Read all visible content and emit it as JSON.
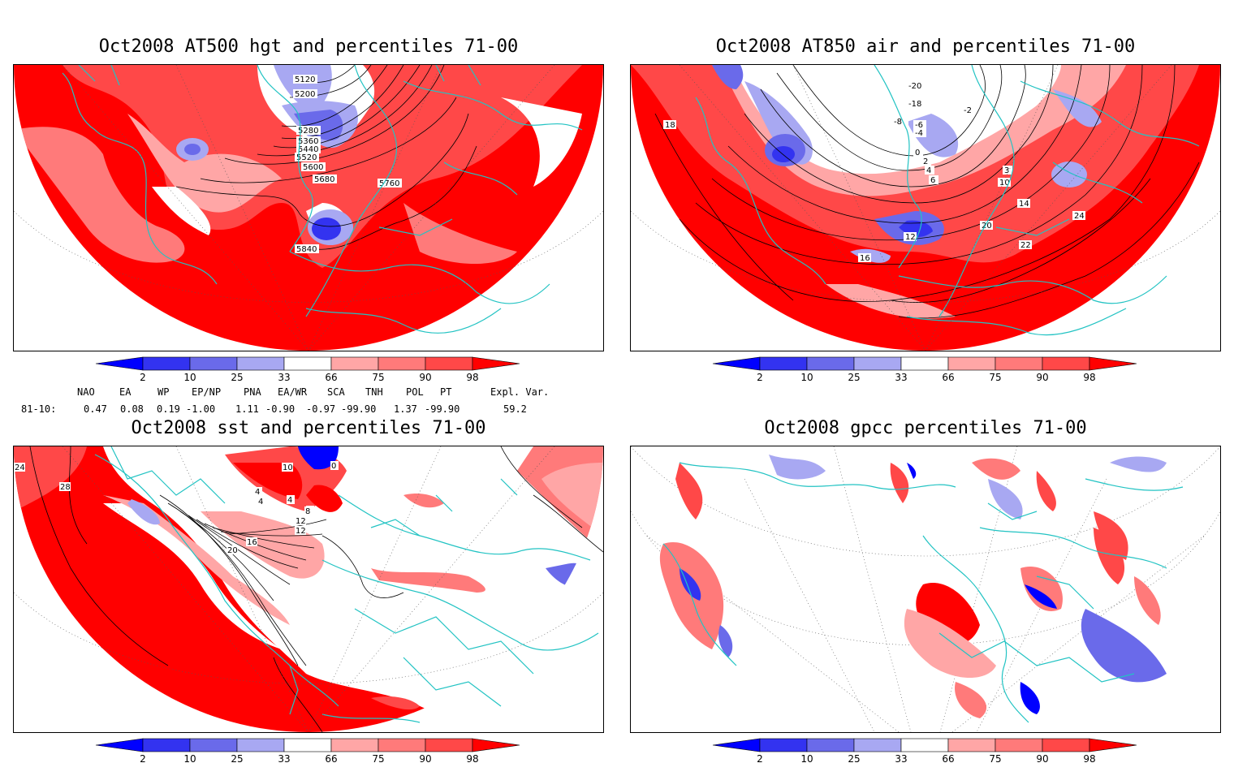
{
  "panels": [
    {
      "id": "hgt500",
      "title": "Oct2008 AT500 hgt and percentiles 71-00",
      "contour_labels": [
        "5120",
        "5200",
        "5280",
        "5360",
        "5440",
        "5520",
        "5600",
        "5680",
        "5760",
        "5840"
      ]
    },
    {
      "id": "air850",
      "title": "Oct2008 AT850 air and percentiles 71-00",
      "contour_labels": [
        "-20",
        "-18",
        "-8",
        "-6",
        "-4",
        "-2",
        "0",
        "2",
        "4",
        "6",
        "3",
        "10",
        "12",
        "14",
        "16",
        "18",
        "20",
        "22",
        "24"
      ]
    },
    {
      "id": "sst",
      "title": "Oct2008 sst and percentiles 71-00",
      "contour_labels": [
        "24",
        "28",
        "0",
        "4",
        "8",
        "12",
        "16",
        "20",
        "10",
        "4",
        "4",
        "8",
        "12"
      ]
    },
    {
      "id": "gpcc",
      "title": "Oct2008 gpcc percentiles 71-00",
      "contour_labels": []
    }
  ],
  "colorbar": {
    "labels": [
      "2",
      "10",
      "25",
      "33",
      "66",
      "75",
      "90",
      "98"
    ],
    "colors": {
      "b1": "#0000ff",
      "b2": "#3333f0",
      "b3": "#6a6aea",
      "b4": "#a8a8f2",
      "r1": "#ffa6a6",
      "r2": "#ff7a7a",
      "r3": "#ff4848",
      "r4": "#ff0000"
    }
  },
  "indices": {
    "headers": [
      "NAO",
      "EA",
      "WP",
      "EP/NP",
      "PNA",
      "EA/WR",
      "SCA",
      "TNH",
      "POL",
      "PT",
      "Expl. Var."
    ],
    "row_label": "81-10:",
    "values": [
      "0.47",
      "0.08",
      "0.19",
      "-1.00",
      "1.11",
      "-0.90",
      "-0.97",
      "-99.90",
      "1.37",
      "-99.90",
      "59.2"
    ]
  },
  "colors": {
    "coast": "#22c3c3",
    "contour": "#000000",
    "grid": "#555555"
  }
}
